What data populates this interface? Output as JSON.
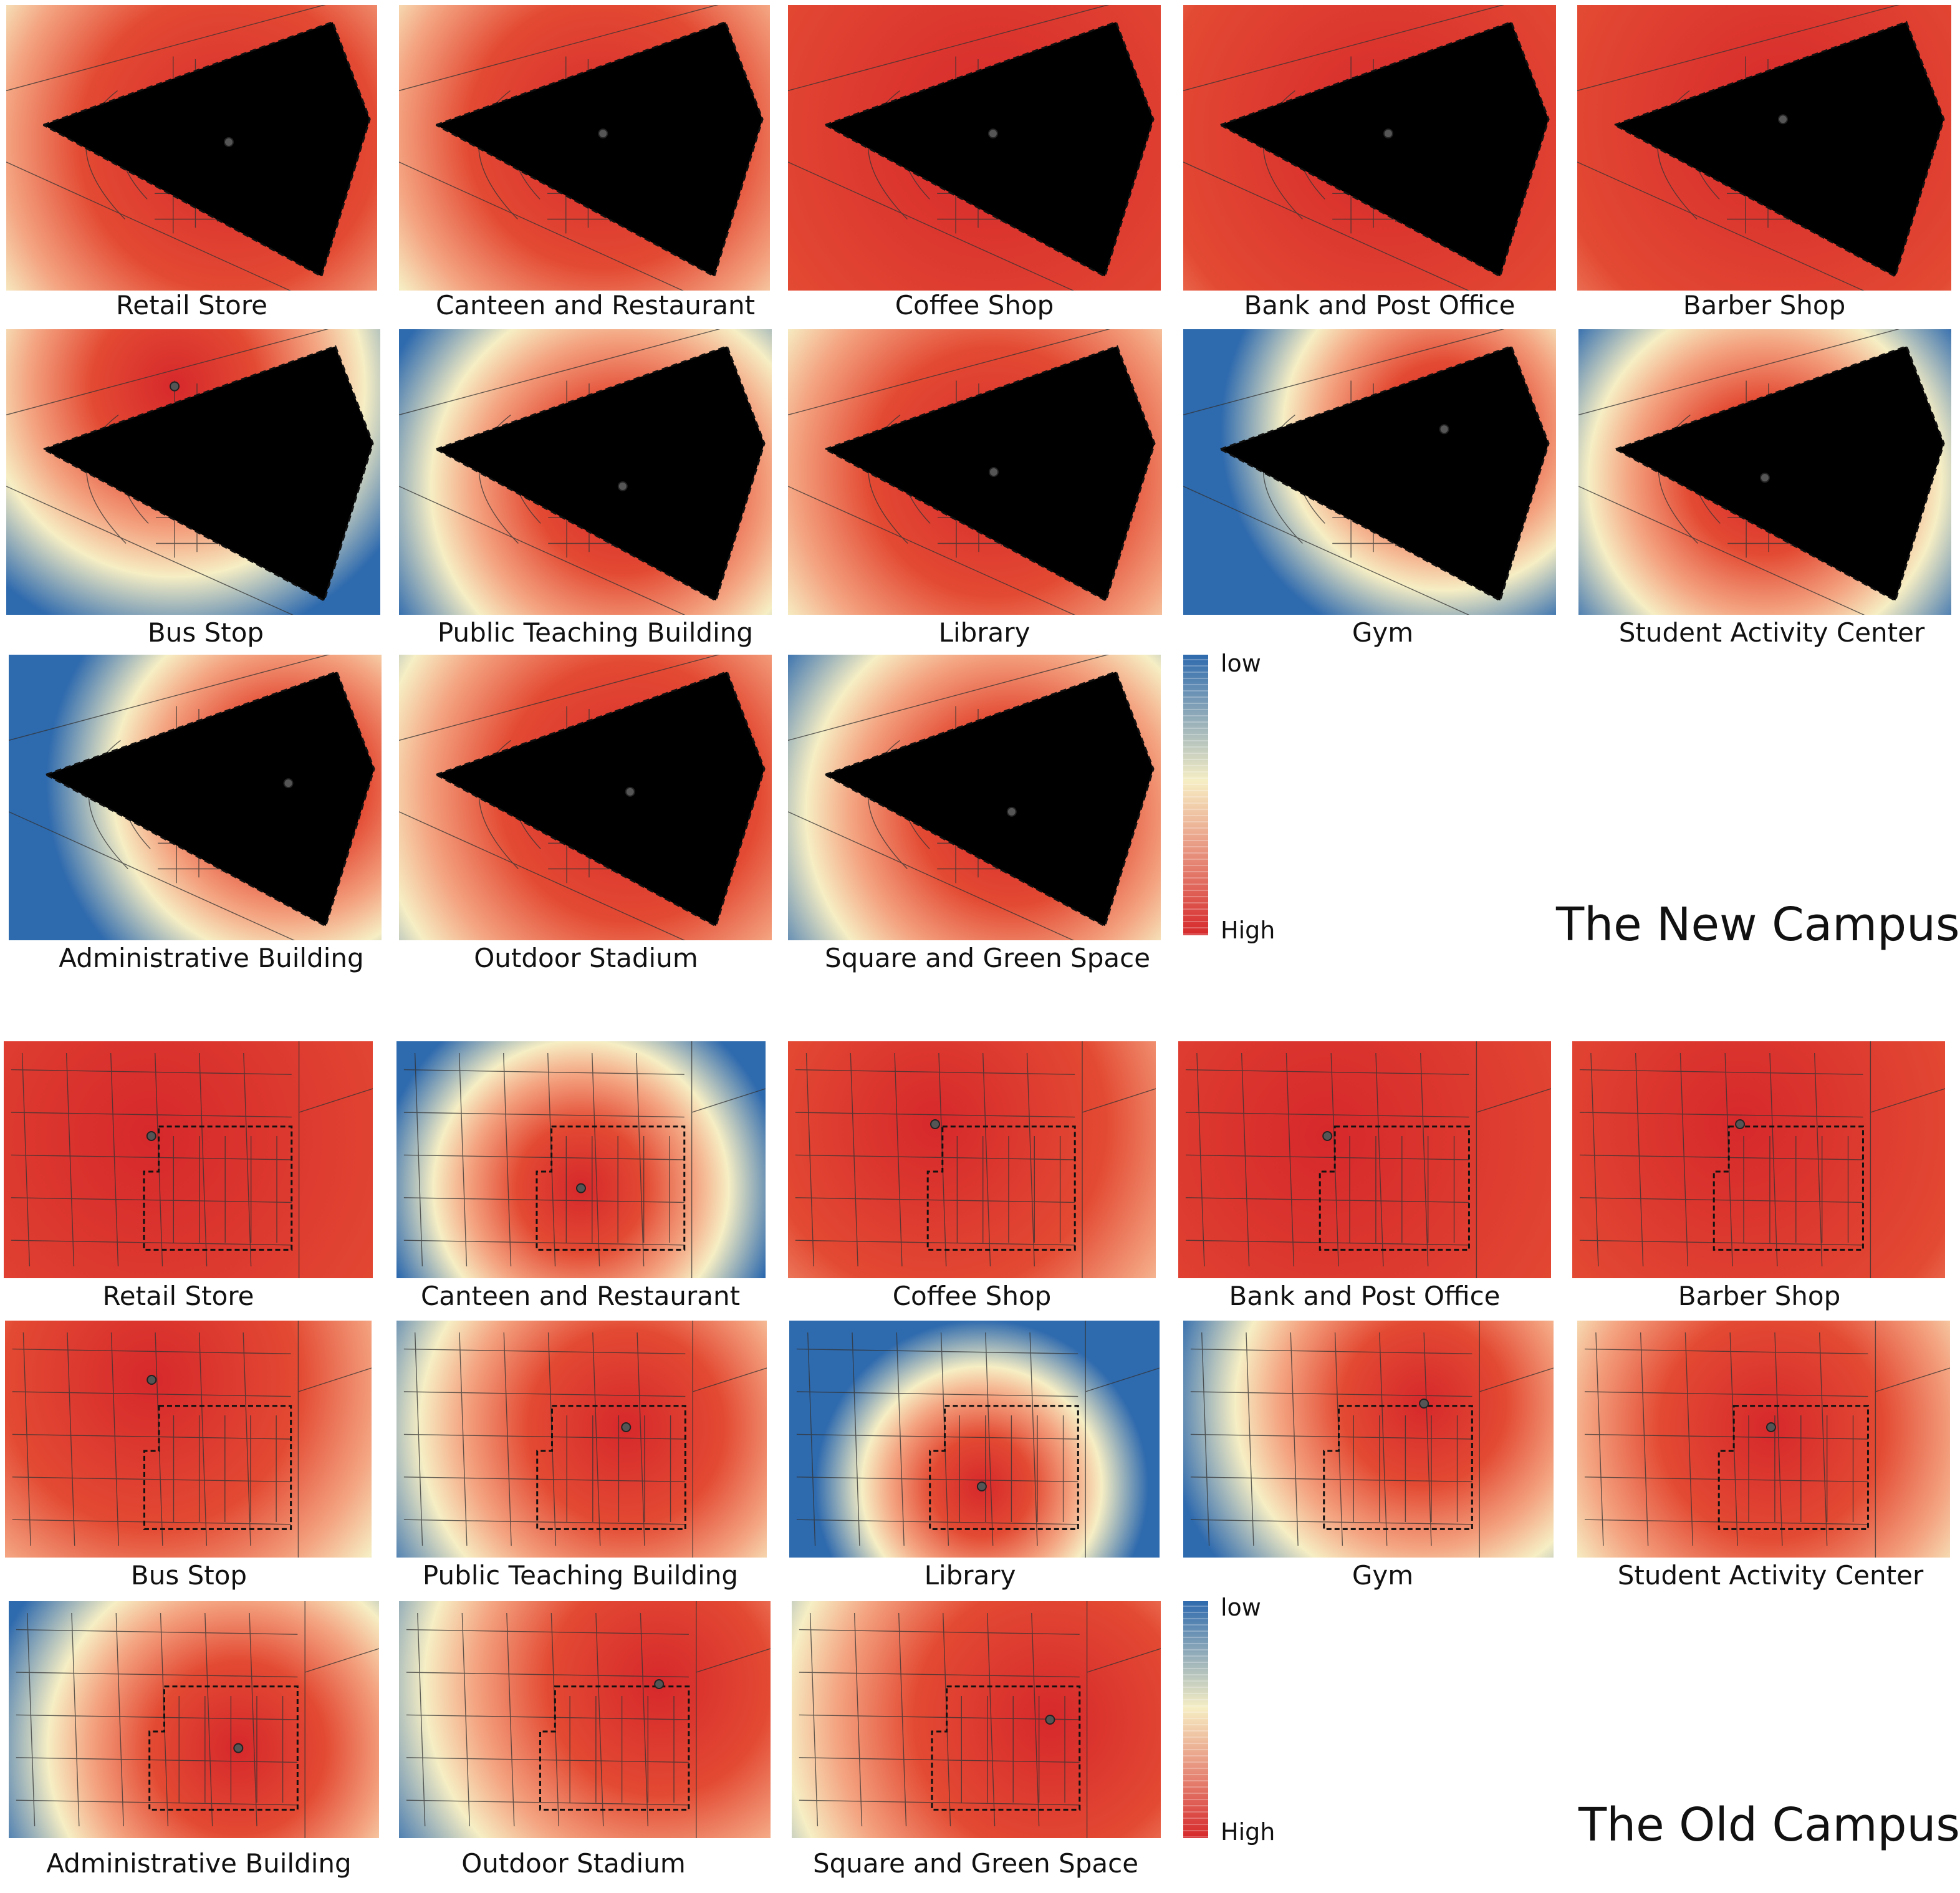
{
  "colors": {
    "low": "#2e6aae",
    "mid": "#f6eec4",
    "high": "#d6282b"
  },
  "legend": {
    "low": "low",
    "high": "High"
  },
  "new_campus": {
    "title": "The New Campus",
    "panels": [
      {
        "label": "Retail Store",
        "hot": [
          0.6,
          0.48
        ],
        "spread": 0.95,
        "bias": 0.35
      },
      {
        "label": "Canteen and Restaurant",
        "hot": [
          0.55,
          0.45
        ],
        "spread": 0.9,
        "bias": 0.3
      },
      {
        "label": "Coffee Shop",
        "hot": [
          0.55,
          0.45
        ],
        "spread": 1.4,
        "bias": 0.55
      },
      {
        "label": "Bank and Post Office",
        "hot": [
          0.55,
          0.45
        ],
        "spread": 1.3,
        "bias": 0.5
      },
      {
        "label": "Barber Shop",
        "hot": [
          0.55,
          0.4
        ],
        "spread": 1.3,
        "bias": 0.5
      },
      {
        "label": "Bus Stop",
        "hot": [
          0.45,
          0.2
        ],
        "spread": 0.7,
        "bias": 0.05
      },
      {
        "label": "Public Teaching Building",
        "hot": [
          0.6,
          0.55
        ],
        "spread": 0.7,
        "bias": 0.1
      },
      {
        "label": "Library",
        "hot": [
          0.55,
          0.5
        ],
        "spread": 0.9,
        "bias": 0.2
      },
      {
        "label": "Gym",
        "hot": [
          0.7,
          0.35
        ],
        "spread": 0.6,
        "bias": 0.0
      },
      {
        "label": "Student Activity Center",
        "hot": [
          0.5,
          0.52
        ],
        "spread": 0.65,
        "bias": 0.05
      },
      {
        "label": "Administrative Building",
        "hot": [
          0.75,
          0.45
        ],
        "spread": 0.65,
        "bias": 0.05
      },
      {
        "label": "Outdoor Stadium",
        "hot": [
          0.62,
          0.48
        ],
        "spread": 0.9,
        "bias": 0.25
      },
      {
        "label": "Square and Green Space",
        "hot": [
          0.6,
          0.55
        ],
        "spread": 0.75,
        "bias": 0.1
      }
    ]
  },
  "old_campus": {
    "title": "The Old Campus",
    "panels": [
      {
        "label": "Retail Store",
        "hot": [
          0.4,
          0.4
        ],
        "spread": 1.5,
        "bias": 0.6
      },
      {
        "label": "Canteen and Restaurant",
        "hot": [
          0.5,
          0.62
        ],
        "spread": 0.55,
        "bias": 0.05
      },
      {
        "label": "Coffee Shop",
        "hot": [
          0.4,
          0.35
        ],
        "spread": 1.1,
        "bias": 0.35
      },
      {
        "label": "Bank and Post Office",
        "hot": [
          0.4,
          0.4
        ],
        "spread": 1.5,
        "bias": 0.6
      },
      {
        "label": "Barber Shop",
        "hot": [
          0.45,
          0.35
        ],
        "spread": 1.3,
        "bias": 0.5
      },
      {
        "label": "Bus Stop",
        "hot": [
          0.4,
          0.25
        ],
        "spread": 1.0,
        "bias": 0.3
      },
      {
        "label": "Public Teaching Building",
        "hot": [
          0.62,
          0.45
        ],
        "spread": 0.75,
        "bias": 0.15
      },
      {
        "label": "Library",
        "hot": [
          0.52,
          0.7
        ],
        "spread": 0.45,
        "bias": 0.0
      },
      {
        "label": "Gym",
        "hot": [
          0.65,
          0.35
        ],
        "spread": 0.7,
        "bias": 0.05
      },
      {
        "label": "Student Activity Center",
        "hot": [
          0.52,
          0.45
        ],
        "spread": 0.85,
        "bias": 0.15
      },
      {
        "label": "Administrative Building",
        "hot": [
          0.62,
          0.62
        ],
        "spread": 0.7,
        "bias": 0.1
      },
      {
        "label": "Outdoor Stadium",
        "hot": [
          0.7,
          0.35
        ],
        "spread": 0.85,
        "bias": 0.15
      },
      {
        "label": "Square and Green Space",
        "hot": [
          0.7,
          0.5
        ],
        "spread": 0.95,
        "bias": 0.25
      }
    ]
  }
}
